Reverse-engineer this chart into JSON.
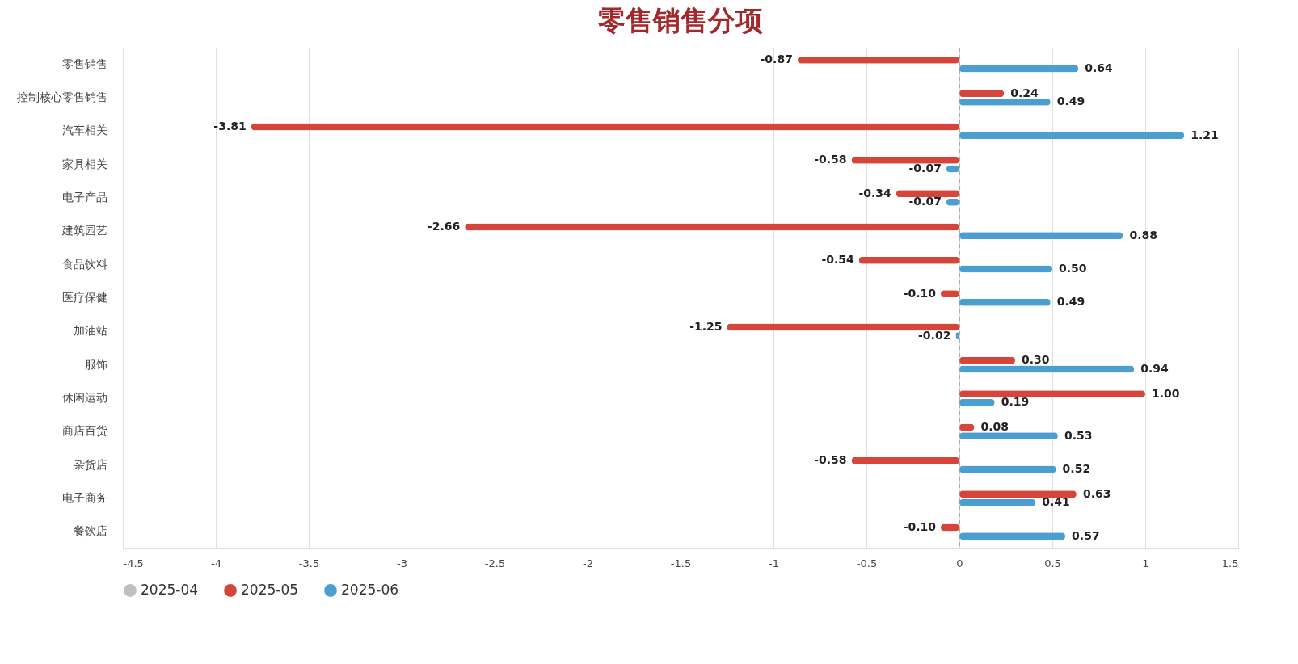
{
  "chart_data": {
    "type": "bar",
    "orientation": "horizontal",
    "title": "零售销售分项",
    "categories": [
      "零售销售",
      "控制核心零售销售",
      "汽车相关",
      "家具相关",
      "电子产品",
      "建筑园艺",
      "食品饮料",
      "医疗保健",
      "加油站",
      "服饰",
      "休闲运动",
      "商店百货",
      "杂货店",
      "电子商务",
      "餐饮店"
    ],
    "series": [
      {
        "name": "2025-04",
        "color": "#bfbfbf",
        "values": [
          null,
          null,
          null,
          null,
          null,
          null,
          null,
          null,
          null,
          null,
          null,
          null,
          null,
          null,
          null
        ]
      },
      {
        "name": "2025-05",
        "color": "#d6453a",
        "values": [
          -0.87,
          0.24,
          -3.81,
          -0.58,
          -0.34,
          -2.66,
          -0.54,
          -0.1,
          -1.25,
          0.3,
          1.0,
          0.08,
          -0.58,
          0.63,
          -0.1
        ],
        "value_labels": [
          "-0.87",
          "0.24",
          "-3.81",
          "-0.58",
          "-0.34",
          "-2.66",
          "-0.54",
          "-0.10",
          "-1.25",
          "0.30",
          "1.00",
          "0.08",
          "-0.58",
          "0.63",
          "-0.10"
        ]
      },
      {
        "name": "2025-06",
        "color": "#4a9fd0",
        "values": [
          0.64,
          0.49,
          1.21,
          -0.07,
          -0.07,
          0.88,
          0.5,
          0.49,
          -0.02,
          0.94,
          0.19,
          0.53,
          0.52,
          0.41,
          0.57
        ],
        "value_labels": [
          "0.64",
          "0.49",
          "1.21",
          "-0.07",
          "-0.07",
          "0.88",
          "0.50",
          "0.49",
          "-0.02",
          "0.94",
          "0.19",
          "0.53",
          "0.52",
          "0.41",
          "0.57"
        ]
      }
    ],
    "xlim": [
      -4.5,
      1.5
    ],
    "xticks": [
      {
        "value": -4.5,
        "label": "-4.5"
      },
      -4,
      {
        "value": -3.5,
        "label": "-3.5"
      },
      -3,
      {
        "value": -2.5,
        "label": "-2.5"
      },
      -2,
      {
        "value": -1.5,
        "label": "-1.5"
      },
      -1,
      {
        "value": -0.5,
        "label": "-0.5"
      },
      0,
      {
        "value": 0.5,
        "label": "0.5"
      },
      1,
      {
        "value": 1.5,
        "label": "1.5"
      }
    ],
    "ref_lines": [
      {
        "axis": "x",
        "value": 0,
        "color": "#999999",
        "line_style": "dashed"
      }
    ],
    "grid": "x",
    "legend": "bottom"
  }
}
